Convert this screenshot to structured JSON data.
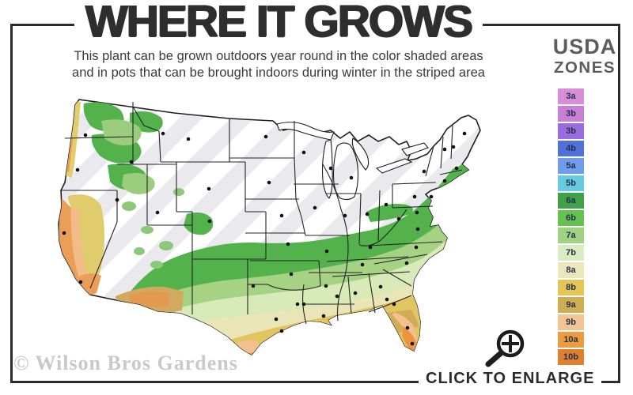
{
  "header": {
    "title": "WHERE IT GROWS",
    "subtitle_line1": "This plant can be grown outdoors year round in the color shaded areas",
    "subtitle_line2": "and in pots that can be brought indoors during winter in the striped area"
  },
  "legend": {
    "title_line1": "USDA",
    "title_line2": "ZONES",
    "zones": [
      {
        "label": "3a",
        "color": "#d88dd8"
      },
      {
        "label": "3b",
        "color": "#c87fd6"
      },
      {
        "label": "3b",
        "color": "#9a6ce0"
      },
      {
        "label": "4b",
        "color": "#4f72d8"
      },
      {
        "label": "5a",
        "color": "#6f9ceb"
      },
      {
        "label": "5b",
        "color": "#66cde0"
      },
      {
        "label": "6a",
        "color": "#3fa24a"
      },
      {
        "label": "6b",
        "color": "#66c24f"
      },
      {
        "label": "7a",
        "color": "#9fd382"
      },
      {
        "label": "7b",
        "color": "#d9edc3"
      },
      {
        "label": "8a",
        "color": "#ece7bb"
      },
      {
        "label": "8b",
        "color": "#e2c757"
      },
      {
        "label": "9a",
        "color": "#cfad52"
      },
      {
        "label": "9b",
        "color": "#f3c494"
      },
      {
        "label": "10a",
        "color": "#ee9a3e"
      },
      {
        "label": "10b",
        "color": "#e0802f"
      }
    ]
  },
  "map": {
    "watermark": "© Wilson Bros Gardens",
    "palette": {
      "stripeBg": "#ffffff",
      "stripe": "#e9e9ee",
      "outline": "#1f1f1f",
      "stateLine": "#242424",
      "dot": "#111111",
      "green": "#53b24c",
      "greenLight": "#a6d284",
      "greenPale": "#d8eab8",
      "cream": "#eae5b6",
      "gold": "#e1c560",
      "tan": "#cfac55",
      "peach": "#f3c08e",
      "orange": "#ec9440",
      "moss": "#8cc87a",
      "mossLight": "#9ccd7e",
      "caYellow": "#e0cb6d",
      "caOrange": "#eb9e57",
      "caPeach": "#f2bb88",
      "azTan": "#d2a95e",
      "azOrange": "#e39a50",
      "pnwYellow": "#e2cd6f",
      "pnwOrange": "#eb9f55",
      "lake": "#ffffff"
    },
    "city_dots": [
      [
        40,
        58
      ],
      [
        30,
        102
      ],
      [
        13,
        182
      ],
      [
        34,
        244
      ],
      [
        80,
        140
      ],
      [
        98,
        92
      ],
      [
        138,
        56
      ],
      [
        170,
        63
      ],
      [
        196,
        126
      ],
      [
        131,
        156
      ],
      [
        197,
        167
      ],
      [
        268,
        60
      ],
      [
        272,
        118
      ],
      [
        288,
        160
      ],
      [
        296,
        196
      ],
      [
        300,
        234
      ],
      [
        252,
        249
      ],
      [
        308,
        272
      ],
      [
        316,
        272
      ],
      [
        281,
        291
      ],
      [
        288,
        306
      ],
      [
        316,
        80
      ],
      [
        330,
        150
      ],
      [
        345,
        205
      ],
      [
        344,
        249
      ],
      [
        341,
        287
      ],
      [
        350,
        100
      ],
      [
        368,
        160
      ],
      [
        396,
        158
      ],
      [
        376,
        112
      ],
      [
        420,
        146
      ],
      [
        400,
        200
      ],
      [
        390,
        222
      ],
      [
        358,
        262
      ],
      [
        381,
        258
      ],
      [
        413,
        250
      ],
      [
        421,
        266
      ],
      [
        446,
        220
      ],
      [
        458,
        200
      ],
      [
        460,
        177
      ],
      [
        436,
        164
      ],
      [
        456,
        136
      ],
      [
        468,
        104
      ],
      [
        519,
        56
      ],
      [
        494,
        76
      ],
      [
        505,
        73
      ],
      [
        509,
        100
      ],
      [
        494,
        116
      ],
      [
        477,
        136
      ],
      [
        459,
        156
      ],
      [
        430,
        272
      ],
      [
        447,
        302
      ],
      [
        453,
        322
      ]
    ]
  },
  "footer": {
    "enlarge_label": "CLICK TO ENLARGE",
    "magnifier_icon": "magnifier-plus"
  }
}
